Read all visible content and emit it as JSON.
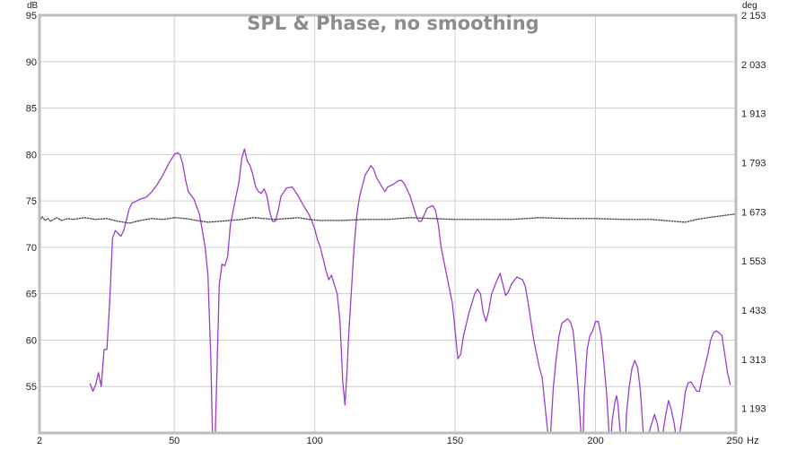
{
  "chart_data": {
    "type": "line",
    "title": "SPL & Phase, no smoothing",
    "xlabel": "Hz",
    "ylabel": "dB",
    "y2label": "deg",
    "x_scale": "linear",
    "xlim": [
      2,
      250
    ],
    "ylim": [
      50,
      95
    ],
    "y2lim": [
      1133,
      2153
    ],
    "grid": true,
    "x_ticks": [
      {
        "value": 2,
        "label": "2"
      },
      {
        "value": 50,
        "label": "50"
      },
      {
        "value": 100,
        "label": "100"
      },
      {
        "value": 150,
        "label": "150"
      },
      {
        "value": 200,
        "label": "200"
      },
      {
        "value": 250,
        "label": "250"
      }
    ],
    "y_ticks": [
      {
        "value": 55,
        "label": "55"
      },
      {
        "value": 60,
        "label": "60"
      },
      {
        "value": 65,
        "label": "65"
      },
      {
        "value": 70,
        "label": "70"
      },
      {
        "value": 75,
        "label": "75"
      },
      {
        "value": 80,
        "label": "80"
      },
      {
        "value": 85,
        "label": "85"
      },
      {
        "value": 90,
        "label": "90"
      },
      {
        "value": 95,
        "label": "95"
      }
    ],
    "y2_ticks": [
      {
        "value": 1193,
        "label": "1 193"
      },
      {
        "value": 1313,
        "label": "1 313"
      },
      {
        "value": 1433,
        "label": "1 433"
      },
      {
        "value": 1553,
        "label": "1 553"
      },
      {
        "value": 1673,
        "label": "1 673"
      },
      {
        "value": 1793,
        "label": "1 793"
      },
      {
        "value": 1913,
        "label": "1 913"
      },
      {
        "value": 2033,
        "label": "2 033"
      },
      {
        "value": 2153,
        "label": "2 153"
      }
    ],
    "series": [
      {
        "color": "#9b3fc9",
        "style": "solid",
        "axis": "left",
        "points": [
          [
            20,
            55.3
          ],
          [
            21,
            54.5
          ],
          [
            22,
            55.2
          ],
          [
            23,
            56.5
          ],
          [
            24,
            55.0
          ],
          [
            25,
            59.0
          ],
          [
            26,
            59.0
          ],
          [
            27,
            64.0
          ],
          [
            28,
            71.0
          ],
          [
            29,
            71.8
          ],
          [
            30,
            71.5
          ],
          [
            31,
            71.2
          ],
          [
            32,
            71.8
          ],
          [
            33,
            73.0
          ],
          [
            34,
            74.2
          ],
          [
            35,
            74.8
          ],
          [
            36,
            74.9
          ],
          [
            38,
            75.2
          ],
          [
            40,
            75.4
          ],
          [
            42,
            76.0
          ],
          [
            44,
            76.8
          ],
          [
            46,
            77.8
          ],
          [
            48,
            79.0
          ],
          [
            50,
            80.0
          ],
          [
            51,
            80.2
          ],
          [
            52,
            80.0
          ],
          [
            53,
            79.0
          ],
          [
            54,
            77.3
          ],
          [
            55,
            76.0
          ],
          [
            57,
            75.2
          ],
          [
            59,
            73.5
          ],
          [
            61,
            70.0
          ],
          [
            62,
            67.0
          ],
          [
            63,
            58.0
          ],
          [
            63.6,
            50.0
          ],
          [
            64.6,
            50.0
          ],
          [
            65.3,
            58.0
          ],
          [
            66,
            66.0
          ],
          [
            67,
            68.2
          ],
          [
            68,
            68.0
          ],
          [
            69,
            69.0
          ],
          [
            70,
            72.5
          ],
          [
            71,
            74.0
          ],
          [
            72,
            75.5
          ],
          [
            73,
            77.0
          ],
          [
            74,
            79.5
          ],
          [
            75,
            80.6
          ],
          [
            76,
            79.3
          ],
          [
            77,
            78.8
          ],
          [
            78,
            77.8
          ],
          [
            79,
            76.5
          ],
          [
            80,
            76.0
          ],
          [
            81,
            75.8
          ],
          [
            82,
            76.3
          ],
          [
            83,
            75.5
          ],
          [
            84,
            73.8
          ],
          [
            85,
            72.8
          ],
          [
            86,
            72.8
          ],
          [
            87,
            74.0
          ],
          [
            88,
            75.5
          ],
          [
            90,
            76.4
          ],
          [
            92,
            76.5
          ],
          [
            94,
            75.6
          ],
          [
            96,
            74.5
          ],
          [
            98,
            73.5
          ],
          [
            99,
            72.8
          ],
          [
            100,
            72.0
          ],
          [
            101,
            70.8
          ],
          [
            102,
            70.0
          ],
          [
            103,
            68.8
          ],
          [
            104,
            67.5
          ],
          [
            105,
            66.5
          ],
          [
            106,
            67.0
          ],
          [
            107,
            66.0
          ],
          [
            108,
            65.0
          ],
          [
            109,
            62.0
          ],
          [
            110,
            55.5
          ],
          [
            110.8,
            53.0
          ],
          [
            111.5,
            56.5
          ],
          [
            112,
            60.0
          ],
          [
            113,
            65.0
          ],
          [
            114,
            70.0
          ],
          [
            115,
            73.5
          ],
          [
            116,
            75.5
          ],
          [
            118,
            77.8
          ],
          [
            120,
            78.8
          ],
          [
            121,
            78.4
          ],
          [
            122,
            77.5
          ],
          [
            124,
            76.5
          ],
          [
            125,
            76.0
          ],
          [
            126,
            76.5
          ],
          [
            128,
            76.8
          ],
          [
            130,
            77.2
          ],
          [
            131,
            77.2
          ],
          [
            132,
            76.8
          ],
          [
            134,
            75.5
          ],
          [
            135,
            74.5
          ],
          [
            136,
            73.5
          ],
          [
            137,
            72.8
          ],
          [
            138,
            72.8
          ],
          [
            139,
            73.5
          ],
          [
            140,
            74.2
          ],
          [
            142,
            74.5
          ],
          [
            143,
            74.0
          ],
          [
            144,
            72.5
          ],
          [
            145,
            70.0
          ],
          [
            147,
            67.0
          ],
          [
            149,
            64.0
          ],
          [
            150,
            61.0
          ],
          [
            151,
            58.0
          ],
          [
            152,
            58.5
          ],
          [
            153,
            60.5
          ],
          [
            155,
            63.0
          ],
          [
            157,
            65.0
          ],
          [
            158,
            65.5
          ],
          [
            159,
            65.0
          ],
          [
            160,
            63.0
          ],
          [
            161,
            62.0
          ],
          [
            162,
            63.2
          ],
          [
            163,
            65.0
          ],
          [
            165,
            66.5
          ],
          [
            166,
            67.2
          ],
          [
            167,
            66.0
          ],
          [
            168,
            64.8
          ],
          [
            169,
            65.2
          ],
          [
            170,
            66.0
          ],
          [
            172,
            66.8
          ],
          [
            174,
            66.5
          ],
          [
            175,
            65.8
          ],
          [
            176,
            64.0
          ],
          [
            178,
            60.0
          ],
          [
            180,
            57.0
          ],
          [
            181,
            56.0
          ],
          [
            182,
            53.0
          ],
          [
            183,
            50.0
          ],
          [
            184,
            50.0
          ],
          [
            185,
            55.0
          ],
          [
            186,
            58.0
          ],
          [
            187,
            60.5
          ],
          [
            188,
            61.8
          ],
          [
            190,
            62.3
          ],
          [
            191,
            62.0
          ],
          [
            192,
            61.0
          ],
          [
            193,
            58.0
          ],
          [
            194,
            54.0
          ],
          [
            194.8,
            50.0
          ],
          [
            195.6,
            50.0
          ],
          [
            196,
            54.0
          ],
          [
            197,
            59.0
          ],
          [
            198,
            60.5
          ],
          [
            199,
            61.0
          ],
          [
            200,
            62.0
          ],
          [
            201,
            62.0
          ],
          [
            202,
            60.5
          ],
          [
            203,
            57.5
          ],
          [
            204,
            54.0
          ],
          [
            204.8,
            50.0
          ],
          [
            205.6,
            50.0
          ],
          [
            206,
            51.5
          ],
          [
            207,
            53.5
          ],
          [
            207.5,
            54.0
          ],
          [
            208,
            53.0
          ],
          [
            208.8,
            50.0
          ],
          [
            210.8,
            50.0
          ],
          [
            211,
            52.0
          ],
          [
            212,
            55.0
          ],
          [
            213,
            57.0
          ],
          [
            214,
            57.8
          ],
          [
            215,
            57.0
          ],
          [
            216,
            54.5
          ],
          [
            217,
            50.0
          ],
          [
            219,
            50.0
          ],
          [
            220,
            51.0
          ],
          [
            221,
            52.0
          ],
          [
            222,
            51.0
          ],
          [
            222.5,
            50.0
          ],
          [
            224,
            50.0
          ],
          [
            225,
            52.0
          ],
          [
            226,
            53.5
          ],
          [
            227,
            52.5
          ],
          [
            228,
            51.0
          ],
          [
            228.5,
            50.0
          ],
          [
            230,
            50.0
          ],
          [
            231,
            52.0
          ],
          [
            232,
            54.5
          ],
          [
            233,
            55.4
          ],
          [
            234,
            55.5
          ],
          [
            235,
            55.0
          ],
          [
            236,
            54.5
          ],
          [
            237,
            54.5
          ],
          [
            238,
            56.0
          ],
          [
            240,
            58.5
          ],
          [
            241,
            60.0
          ],
          [
            242,
            60.8
          ],
          [
            243,
            61.0
          ],
          [
            244,
            60.8
          ],
          [
            245,
            60.5
          ],
          [
            246,
            58.5
          ],
          [
            247,
            56.5
          ],
          [
            248,
            55.2
          ]
        ]
      },
      {
        "color": "#444444",
        "style": "dotted",
        "axis": "left",
        "points": [
          [
            2,
            72.8
          ],
          [
            3,
            73.3
          ],
          [
            4,
            72.9
          ],
          [
            5,
            73.1
          ],
          [
            6,
            72.8
          ],
          [
            8,
            73.2
          ],
          [
            10,
            72.9
          ],
          [
            12,
            73.1
          ],
          [
            14,
            73.0
          ],
          [
            18,
            73.2
          ],
          [
            22,
            73.0
          ],
          [
            26,
            73.1
          ],
          [
            30,
            72.8
          ],
          [
            34,
            72.6
          ],
          [
            38,
            72.9
          ],
          [
            42,
            73.1
          ],
          [
            46,
            73.0
          ],
          [
            50,
            73.2
          ],
          [
            54,
            73.1
          ],
          [
            58,
            72.9
          ],
          [
            62,
            72.7
          ],
          [
            66,
            72.8
          ],
          [
            70,
            72.9
          ],
          [
            74,
            73.0
          ],
          [
            78,
            73.2
          ],
          [
            82,
            73.1
          ],
          [
            86,
            73.0
          ],
          [
            90,
            73.1
          ],
          [
            94,
            73.2
          ],
          [
            98,
            73.0
          ],
          [
            102,
            72.9
          ],
          [
            110,
            72.9
          ],
          [
            118,
            73.0
          ],
          [
            126,
            73.0
          ],
          [
            134,
            73.2
          ],
          [
            142,
            73.1
          ],
          [
            150,
            73.0
          ],
          [
            160,
            73.0
          ],
          [
            170,
            73.0
          ],
          [
            180,
            73.2
          ],
          [
            190,
            73.1
          ],
          [
            200,
            73.1
          ],
          [
            210,
            73.0
          ],
          [
            220,
            73.0
          ],
          [
            228,
            72.8
          ],
          [
            232,
            72.7
          ],
          [
            236,
            73.0
          ],
          [
            240,
            73.2
          ],
          [
            245,
            73.4
          ],
          [
            250,
            73.6
          ]
        ]
      }
    ]
  }
}
